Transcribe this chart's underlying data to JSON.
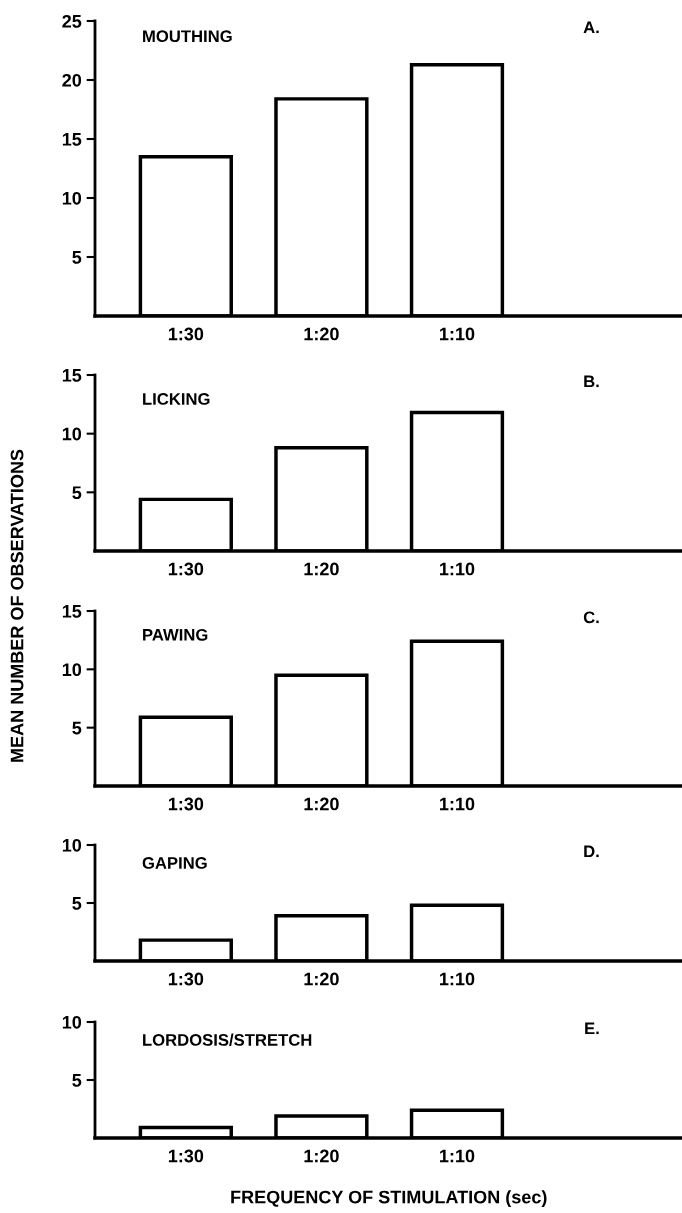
{
  "chart_data": [
    {
      "type": "bar",
      "title": "MOUTHING",
      "annotations": [
        "A."
      ],
      "categories": [
        "1:30",
        "1:20",
        "1:10"
      ],
      "values": [
        13.5,
        18.4,
        21.3
      ],
      "color": "#ffffff",
      "ylim": [
        0,
        25
      ],
      "yticks": [
        5,
        10,
        15,
        20,
        25
      ],
      "grid": false,
      "legend": false
    },
    {
      "type": "bar",
      "title": "LICKING",
      "annotations": [
        "B."
      ],
      "categories": [
        "1:30",
        "1:20",
        "1:10"
      ],
      "values": [
        4.4,
        8.8,
        11.8
      ],
      "color": "#ffffff",
      "ylim": [
        0,
        15
      ],
      "yticks": [
        5,
        10,
        15
      ],
      "grid": false,
      "legend": false
    },
    {
      "type": "bar",
      "title": "PAWING",
      "annotations": [
        "C."
      ],
      "ylabel": "MEAN NUMBER OF OBSERVATIONS",
      "categories": [
        "1:30",
        "1:20",
        "1:10"
      ],
      "values": [
        5.9,
        9.5,
        12.4
      ],
      "color": "#ffffff",
      "ylim": [
        0,
        15
      ],
      "yticks": [
        5,
        10,
        15
      ],
      "grid": false,
      "legend": false
    },
    {
      "type": "bar",
      "title": "GAPING",
      "annotations": [
        "D."
      ],
      "categories": [
        "1:30",
        "1:20",
        "1:10"
      ],
      "values": [
        1.8,
        3.9,
        4.8
      ],
      "color": "#ffffff",
      "ylim": [
        0,
        10
      ],
      "yticks": [
        5,
        10
      ],
      "grid": false,
      "legend": false
    },
    {
      "type": "bar",
      "title": "LORDOSIS/STRETCH",
      "annotations": [
        "E."
      ],
      "xlabel": "FREQUENCY OF STIMULATION (sec)",
      "categories": [
        "1:30",
        "1:20",
        "1:10"
      ],
      "values": [
        0.9,
        1.9,
        2.4
      ],
      "color": "#ffffff",
      "ylim": [
        0,
        10
      ],
      "yticks": [
        5,
        10
      ],
      "grid": false,
      "legend": false
    }
  ]
}
